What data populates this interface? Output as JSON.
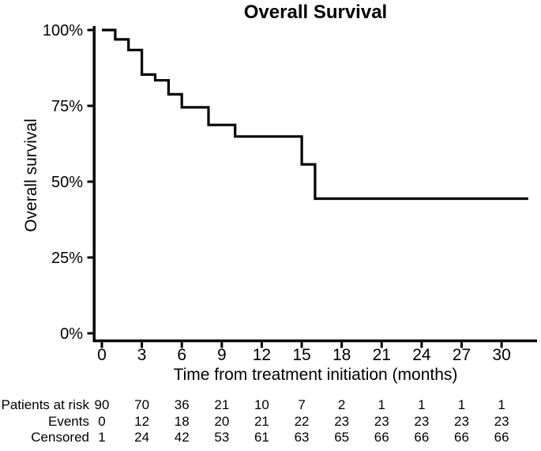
{
  "chart_data": {
    "type": "line",
    "subtype": "kaplan_meier_step",
    "title": "Overall Survival",
    "xlabel": "Time from treatment initiation (months)",
    "ylabel": "Overall survival",
    "xlim": [
      0,
      32.7
    ],
    "ylim": [
      0,
      100
    ],
    "x_ticks": [
      0,
      3,
      6,
      9,
      12,
      15,
      18,
      21,
      24,
      27,
      30
    ],
    "y_ticks": [
      0,
      25,
      50,
      75,
      100
    ],
    "y_tick_labels": [
      "0%",
      "25%",
      "50%",
      "75%",
      "100%"
    ],
    "grid": false,
    "legend": false,
    "line_color": "#000000",
    "series": [
      {
        "name": "Overall survival",
        "step_points": [
          [
            0,
            100
          ],
          [
            1,
            96.9
          ],
          [
            2,
            93.4
          ],
          [
            3,
            85.3
          ],
          [
            4,
            83.4
          ],
          [
            5,
            78.8
          ],
          [
            6,
            74.5
          ],
          [
            8,
            68.7
          ],
          [
            10,
            64.9
          ],
          [
            15,
            55.7
          ],
          [
            16,
            44.4
          ],
          [
            32,
            44.4
          ]
        ]
      }
    ]
  },
  "risk_table": {
    "rows": [
      {
        "label": "Patients at risk",
        "values": [
          "90",
          "70",
          "36",
          "21",
          "10",
          "7",
          "2",
          "1",
          "1",
          "1",
          "1"
        ]
      },
      {
        "label": "Events",
        "values": [
          "0",
          "12",
          "18",
          "20",
          "21",
          "22",
          "23",
          "23",
          "23",
          "23",
          "23"
        ]
      },
      {
        "label": "Censored",
        "values": [
          "1",
          "24",
          "42",
          "53",
          "61",
          "63",
          "65",
          "66",
          "66",
          "66",
          "66"
        ]
      }
    ]
  },
  "colors": {
    "axis": "#000000",
    "text": "#000000",
    "background": "#ffffff"
  }
}
